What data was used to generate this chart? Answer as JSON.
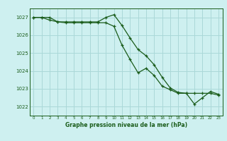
{
  "title": "Graphe pression niveau de la mer (hPa)",
  "background_color": "#cef0f0",
  "grid_color": "#aad8d8",
  "line_color": "#1a5c1a",
  "x_ticks": [
    0,
    1,
    2,
    3,
    4,
    5,
    6,
    7,
    8,
    9,
    10,
    11,
    12,
    13,
    14,
    15,
    16,
    17,
    18,
    19,
    20,
    21,
    22,
    23
  ],
  "ylim": [
    1021.5,
    1027.5
  ],
  "y_ticks": [
    1022,
    1023,
    1024,
    1025,
    1026,
    1027
  ],
  "line1": [
    1027.0,
    1027.0,
    1026.85,
    1026.75,
    1026.75,
    1026.75,
    1026.75,
    1026.75,
    1026.75,
    1027.0,
    1027.15,
    1026.55,
    1025.85,
    1025.2,
    1024.85,
    1024.35,
    1023.65,
    1023.05,
    1022.8,
    1022.75,
    1022.15,
    1022.5,
    1022.85,
    1022.7
  ],
  "line2": [
    1027.0,
    1027.0,
    1027.0,
    1026.75,
    1026.7,
    1026.7,
    1026.7,
    1026.7,
    1026.7,
    1026.7,
    1026.5,
    1025.45,
    1024.65,
    1023.9,
    1024.15,
    1023.75,
    1023.15,
    1022.95,
    1022.75,
    1022.75,
    1022.75,
    1022.75,
    1022.75,
    1022.65
  ],
  "figwidth": 3.2,
  "figheight": 2.0,
  "dpi": 100
}
